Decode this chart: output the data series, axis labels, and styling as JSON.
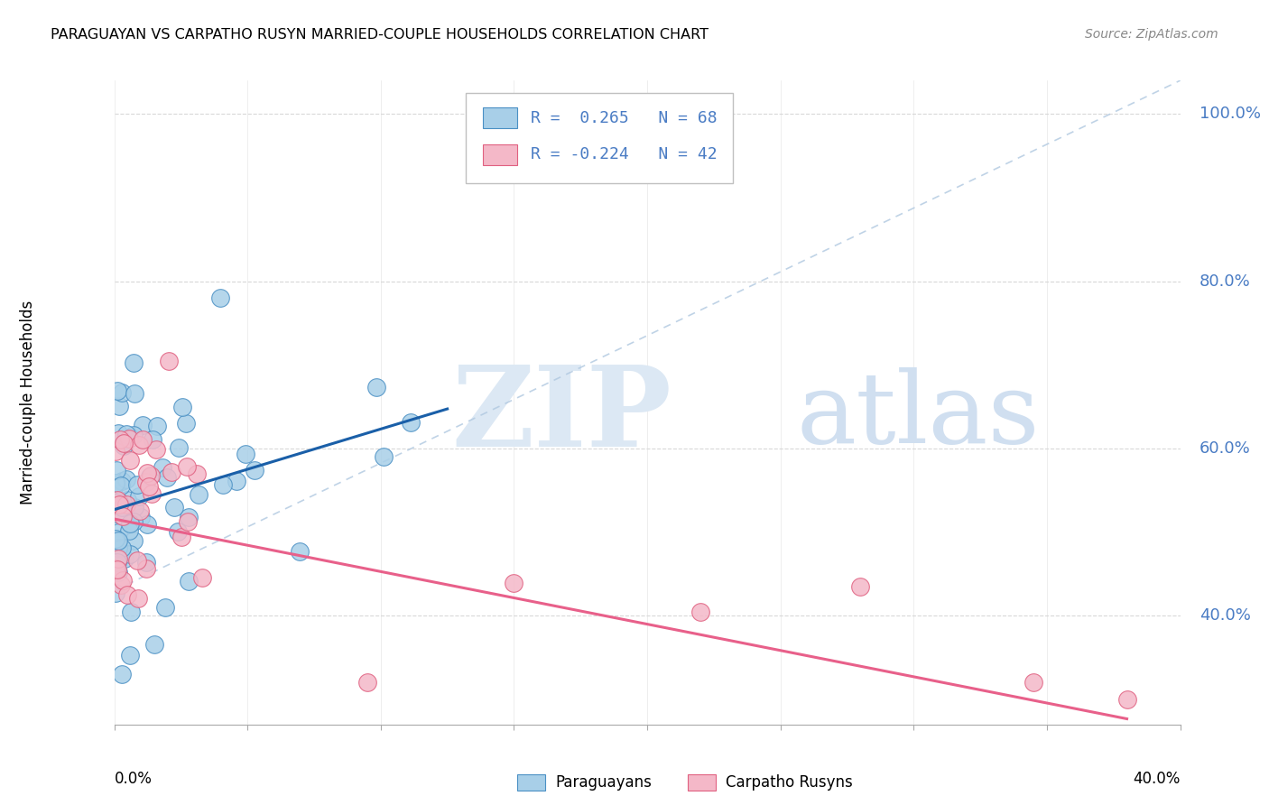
{
  "title": "PARAGUAYAN VS CARPATHO RUSYN MARRIED-COUPLE HOUSEHOLDS CORRELATION CHART",
  "source": "Source: ZipAtlas.com",
  "ylabel": "Married-couple Households",
  "yaxis_ticks": [
    "100.0%",
    "80.0%",
    "60.0%",
    "40.0%"
  ],
  "yaxis_tick_values": [
    1.0,
    0.8,
    0.6,
    0.4
  ],
  "xlim": [
    0.0,
    0.4
  ],
  "ylim": [
    0.27,
    1.04
  ],
  "r_paraguayan": 0.265,
  "n_paraguayan": 68,
  "r_carpatho": -0.224,
  "n_carpatho": 42,
  "color_paraguayan_fill": "#a8cfe8",
  "color_paraguayan_edge": "#4a90c4",
  "color_carpatho_fill": "#f4b8c8",
  "color_carpatho_edge": "#e06080",
  "color_line_paraguayan": "#1a5fa8",
  "color_line_carpatho": "#e8608a",
  "color_dashed": "#b0c8e0",
  "color_yaxis": "#4a7cc4",
  "background_color": "#ffffff",
  "grid_color": "#d8d8d8",
  "watermark_color_zip": "#dce8f4",
  "watermark_color_atlas": "#d0dff0"
}
